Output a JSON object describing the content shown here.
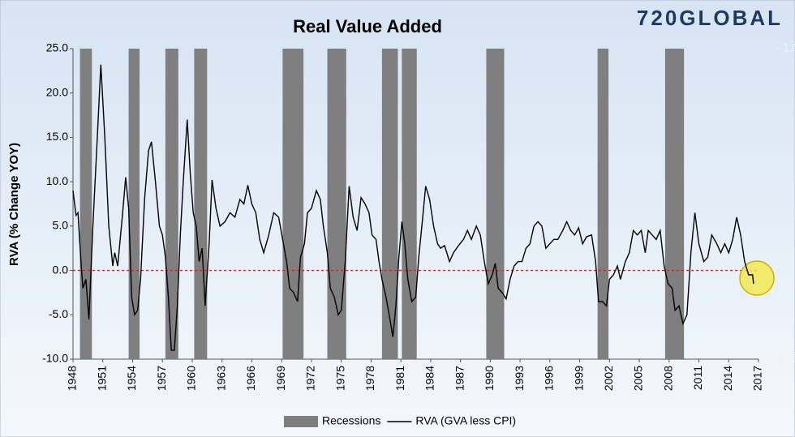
{
  "logo": "720GLOBAL",
  "chart_data": {
    "type": "line",
    "title": "Real Value Added",
    "y_label": "RVA (% Change YOY)",
    "xlim": [
      1948,
      2017
    ],
    "xticks": [
      1948,
      1951,
      1954,
      1957,
      1960,
      1963,
      1966,
      1969,
      1972,
      1975,
      1978,
      1981,
      1984,
      1987,
      1990,
      1993,
      1996,
      1999,
      2002,
      2005,
      2008,
      2011,
      2014,
      2017
    ],
    "ylim": [
      -10,
      25
    ],
    "yticks": [
      {
        "value": -10,
        "label": "-10.0"
      },
      {
        "value": -5,
        "label": "-5.0"
      },
      {
        "value": 0,
        "label": "0.0"
      },
      {
        "value": 5,
        "label": "5.0"
      },
      {
        "value": 10,
        "label": "10.0"
      },
      {
        "value": 15,
        "label": "15.0"
      },
      {
        "value": 20,
        "label": "20.0"
      },
      {
        "value": 25,
        "label": "25.0"
      }
    ],
    "y2lim": [
      0,
      1
    ],
    "y2ticks": [
      {
        "value": 0,
        "label": "0.0"
      },
      {
        "value": 1,
        "label": "1.0"
      }
    ],
    "reference_line": 0,
    "reference_color": "#e02020",
    "legend": "bottom",
    "series": [
      {
        "name": "Recessions",
        "type": "bar",
        "axis": "y2",
        "color": "#7f7f7f",
        "x0": [
          1948.7,
          1953.6,
          1957.3,
          1960.2,
          1969.1,
          1973.6,
          1979.1,
          1981.1,
          1989.6,
          2000.8,
          2007.6
        ],
        "x1": [
          1949.9,
          1954.7,
          1958.6,
          1961.5,
          1971.2,
          1975.5,
          1980.7,
          1982.6,
          1991.4,
          2001.9,
          2009.5
        ],
        "values": [
          1,
          1,
          1,
          1,
          1,
          1,
          1,
          1,
          1,
          1,
          1
        ]
      },
      {
        "name": "RVA (GVA less CPI)",
        "type": "line",
        "color": "#000000",
        "x": [
          1948.0,
          1948.3,
          1948.5,
          1948.8,
          1949.0,
          1949.3,
          1949.6,
          1950.0,
          1950.4,
          1950.8,
          1951.2,
          1951.6,
          1952.0,
          1952.2,
          1952.5,
          1953.0,
          1953.3,
          1953.6,
          1953.9,
          1954.2,
          1954.5,
          1954.8,
          1955.2,
          1955.6,
          1955.9,
          1956.3,
          1956.7,
          1957.0,
          1957.3,
          1957.6,
          1957.9,
          1958.2,
          1958.5,
          1958.8,
          1959.1,
          1959.5,
          1959.8,
          1960.1,
          1960.4,
          1960.7,
          1961.0,
          1961.3,
          1961.7,
          1962.0,
          1962.4,
          1962.8,
          1963.3,
          1963.8,
          1964.3,
          1964.8,
          1965.2,
          1965.6,
          1966.0,
          1966.4,
          1966.8,
          1967.2,
          1967.7,
          1968.2,
          1968.7,
          1969.1,
          1969.5,
          1969.8,
          1970.2,
          1970.6,
          1970.9,
          1971.3,
          1971.6,
          1972.0,
          1972.5,
          1972.9,
          1973.2,
          1973.6,
          1973.9,
          1974.3,
          1974.7,
          1975.0,
          1975.4,
          1975.8,
          1976.2,
          1976.6,
          1977.0,
          1977.4,
          1977.8,
          1978.1,
          1978.5,
          1978.8,
          1979.1,
          1979.5,
          1979.9,
          1980.2,
          1980.5,
          1980.8,
          1981.1,
          1981.4,
          1981.7,
          1982.1,
          1982.5,
          1982.8,
          1983.2,
          1983.5,
          1983.9,
          1984.3,
          1984.7,
          1985.0,
          1985.4,
          1985.9,
          1986.3,
          1986.8,
          1987.3,
          1987.7,
          1988.1,
          1988.6,
          1989.0,
          1989.4,
          1989.8,
          1990.2,
          1990.5,
          1990.8,
          1991.2,
          1991.6,
          1992.0,
          1992.4,
          1992.8,
          1993.2,
          1993.6,
          1994.0,
          1994.4,
          1994.8,
          1995.2,
          1995.6,
          1996.0,
          1996.4,
          1996.8,
          1997.3,
          1997.7,
          1998.1,
          1998.5,
          1998.9,
          1999.3,
          1999.7,
          2000.2,
          2000.6,
          2000.9,
          2001.3,
          2001.7,
          2002.0,
          2002.4,
          2002.8,
          2003.1,
          2003.6,
          2004.0,
          2004.4,
          2004.8,
          2005.2,
          2005.6,
          2005.9,
          2006.3,
          2006.7,
          2007.1,
          2007.5,
          2007.9,
          2008.3,
          2008.6,
          2009.0,
          2009.4,
          2009.8,
          2010.2,
          2010.6,
          2011.0,
          2011.5,
          2011.9,
          2012.3,
          2012.8,
          2013.2,
          2013.6,
          2014.0,
          2014.4,
          2014.8,
          2015.2,
          2015.6,
          2016.0,
          2016.4,
          2016.5
        ],
        "values": [
          9.0,
          6.2,
          6.5,
          1.0,
          -2.0,
          -1.0,
          -5.5,
          5.0,
          14.0,
          23.2,
          15.0,
          5.0,
          0.5,
          2.0,
          0.5,
          6.5,
          10.5,
          7.0,
          -3.0,
          -5.0,
          -4.5,
          -1.0,
          8.0,
          13.5,
          14.5,
          10.0,
          5.0,
          4.0,
          1.5,
          -3.0,
          -9.0,
          -9.0,
          -4.0,
          4.0,
          10.0,
          17.0,
          11.0,
          6.5,
          5.0,
          1.0,
          2.5,
          -4.0,
          3.0,
          10.2,
          7.0,
          5.0,
          5.5,
          6.5,
          6.0,
          8.0,
          7.5,
          9.6,
          7.5,
          6.5,
          3.5,
          2.0,
          4.0,
          6.5,
          6.0,
          3.5,
          1.0,
          -2.0,
          -2.5,
          -3.5,
          1.5,
          3.0,
          6.5,
          7.0,
          9.0,
          8.0,
          5.0,
          2.0,
          -2.0,
          -3.0,
          -5.0,
          -4.5,
          1.0,
          9.5,
          6.0,
          4.5,
          8.2,
          7.5,
          6.5,
          4.0,
          3.5,
          1.0,
          -1.0,
          -3.0,
          -5.5,
          -7.5,
          -4.0,
          1.5,
          5.5,
          3.0,
          -1.0,
          -3.5,
          -3.0,
          1.5,
          6.0,
          9.5,
          8.0,
          5.0,
          3.0,
          2.5,
          2.8,
          1.0,
          2.0,
          2.8,
          3.5,
          4.5,
          3.5,
          5.0,
          4.0,
          1.0,
          -1.5,
          -0.5,
          0.8,
          -2.0,
          -2.5,
          -3.2,
          -1.0,
          0.5,
          1.0,
          1.0,
          2.5,
          3.0,
          5.0,
          5.5,
          5.0,
          2.5,
          3.0,
          3.5,
          3.5,
          4.5,
          5.5,
          4.5,
          4.0,
          4.8,
          3.0,
          3.8,
          4.0,
          1.0,
          -3.5,
          -3.5,
          -4.0,
          -1.0,
          -0.5,
          0.5,
          -1.0,
          1.0,
          2.0,
          4.5,
          4.0,
          4.5,
          2.0,
          4.5,
          4.0,
          3.5,
          4.5,
          0.5,
          -1.5,
          -2.0,
          -4.5,
          -4.0,
          -6.0,
          -5.0,
          2.0,
          6.5,
          3.0,
          1.0,
          1.5,
          4.0,
          3.0,
          2.0,
          3.0,
          2.0,
          3.5,
          6.0,
          4.0,
          1.0,
          -0.5,
          -0.5,
          -1.5
        ]
      }
    ]
  }
}
